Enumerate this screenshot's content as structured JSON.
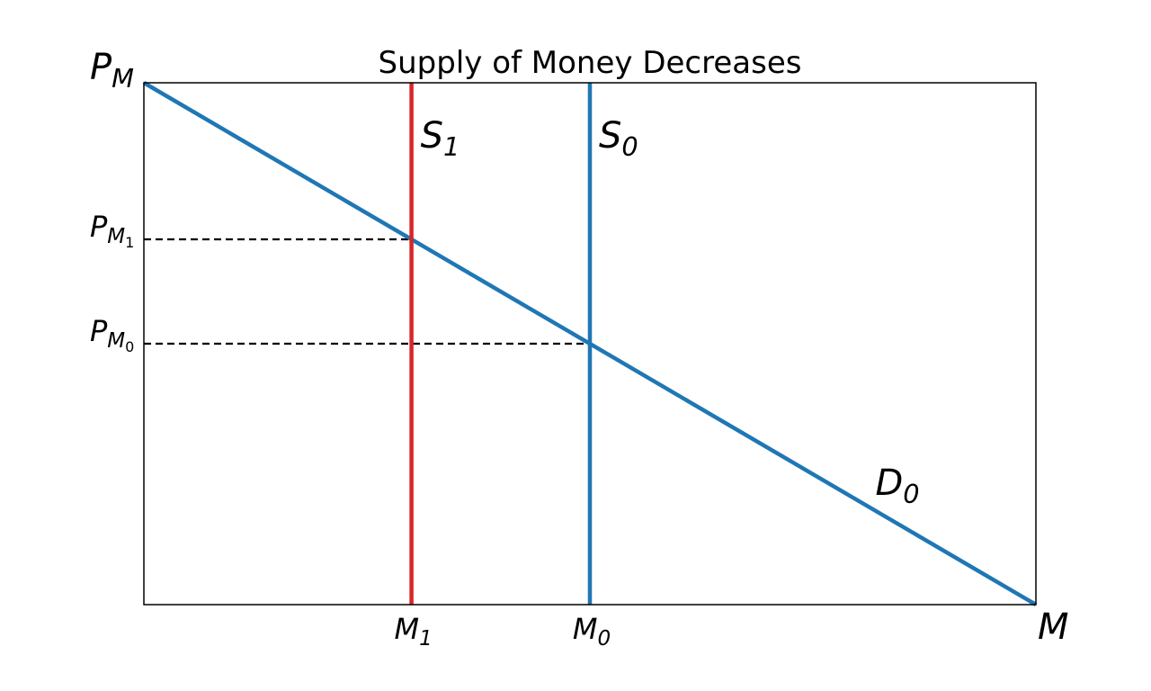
{
  "chart_data": {
    "type": "line",
    "title": "Supply of Money Decreases",
    "xlabel": {
      "base": "M",
      "sub": ""
    },
    "ylabel": {
      "base": "P",
      "sub": "M"
    },
    "xlim": [
      0,
      10
    ],
    "ylim": [
      0,
      10
    ],
    "grid": false,
    "series": [
      {
        "name": {
          "base": "D",
          "sub": "0"
        },
        "kind": "line",
        "x": [
          0,
          10
        ],
        "y": [
          10,
          0
        ],
        "color": "#1f77b4"
      },
      {
        "name": {
          "base": "S",
          "sub": "0"
        },
        "kind": "vertical",
        "x": [
          5,
          5
        ],
        "y": [
          0,
          10
        ],
        "color": "#1f77b4"
      },
      {
        "name": {
          "base": "S",
          "sub": "1"
        },
        "kind": "vertical",
        "x": [
          3,
          3
        ],
        "y": [
          0,
          10
        ],
        "color": "#d62728"
      }
    ],
    "equilibria": [
      {
        "x": 3,
        "y": 7,
        "xlabel": {
          "base": "M",
          "sub": "1"
        },
        "ylabel": {
          "base": "P",
          "sub": "M",
          "subsub": "1"
        }
      },
      {
        "x": 5,
        "y": 5,
        "xlabel": {
          "base": "M",
          "sub": "0"
        },
        "ylabel": {
          "base": "P",
          "sub": "M",
          "subsub": "0"
        }
      }
    ],
    "colors": {
      "demand": "#1f77b4",
      "supply_initial": "#1f77b4",
      "supply_new": "#d62728",
      "guides": "#000000"
    }
  }
}
